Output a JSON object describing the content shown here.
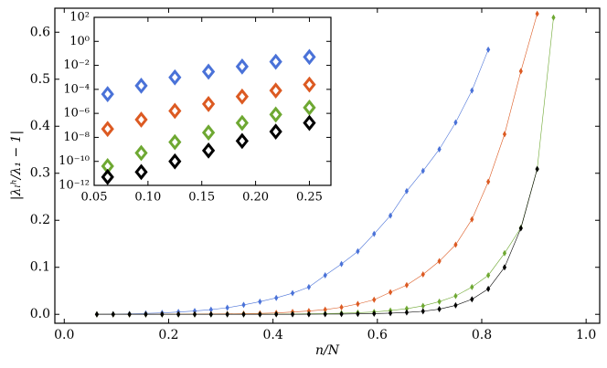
{
  "chart_data": [
    {
      "type": "line",
      "x_label": "n/N",
      "y_label": "|λₗʰ/λ₁ − 1|",
      "xlim": [
        -0.018,
        1.026
      ],
      "ylim": [
        -0.019,
        0.651
      ],
      "xticks": [
        {
          "value": 0,
          "label": "0.0"
        },
        0.2,
        0.4,
        0.6,
        0.8,
        {
          "value": 1,
          "label": "1.0"
        }
      ],
      "yticks": [
        {
          "value": 0,
          "label": "0.0"
        },
        0.1,
        0.2,
        0.3,
        0.4,
        0.5,
        0.6
      ],
      "series": [
        {
          "color": "#4a72d8",
          "x": [
            0.0625,
            0.09375,
            0.125,
            0.15625,
            0.1875,
            0.21875,
            0.25,
            0.28125,
            0.3125,
            0.34375,
            0.375,
            0.40625,
            0.4375,
            0.46875,
            0.5,
            0.53125,
            0.5625,
            0.59375,
            0.625,
            0.65625,
            0.6875,
            0.71875,
            0.75,
            0.78125,
            0.8125
          ],
          "values": [
            0.0002,
            0.0005,
            0.001,
            0.002,
            0.003,
            0.005,
            0.007,
            0.01,
            0.014,
            0.02,
            0.027,
            0.035,
            0.045,
            0.058,
            0.083,
            0.107,
            0.134,
            0.171,
            0.21,
            0.262,
            0.305,
            0.351,
            0.408,
            0.476,
            0.563
          ]
        },
        {
          "color": "#dc5a22",
          "x": [
            0.0625,
            0.09375,
            0.125,
            0.15625,
            0.1875,
            0.21875,
            0.25,
            0.28125,
            0.3125,
            0.34375,
            0.375,
            0.40625,
            0.4375,
            0.46875,
            0.5,
            0.53125,
            0.5625,
            0.59375,
            0.625,
            0.65625,
            0.6875,
            0.71875,
            0.75,
            0.78125,
            0.8125,
            0.84375,
            0.875,
            0.90625
          ],
          "values": [
            1e-05,
            2e-05,
            5e-05,
            0.0001,
            0.0002,
            0.0003,
            0.0005,
            0.0007,
            0.001,
            0.0015,
            0.002,
            0.003,
            0.005,
            0.007,
            0.01,
            0.015,
            0.022,
            0.031,
            0.047,
            0.062,
            0.085,
            0.113,
            0.148,
            0.202,
            0.282,
            0.383,
            0.517,
            0.639
          ]
        },
        {
          "color": "#6ea832",
          "x": [
            0.0625,
            0.09375,
            0.125,
            0.15625,
            0.1875,
            0.21875,
            0.25,
            0.28125,
            0.3125,
            0.34375,
            0.375,
            0.40625,
            0.4375,
            0.46875,
            0.5,
            0.53125,
            0.5625,
            0.59375,
            0.625,
            0.65625,
            0.6875,
            0.71875,
            0.75,
            0.78125,
            0.8125,
            0.84375,
            0.875,
            0.90625,
            0.9375
          ],
          "values": [
            2e-07,
            5e-07,
            1e-06,
            2e-06,
            5e-06,
            1e-05,
            2e-05,
            3e-05,
            6e-05,
            0.0001,
            0.0002,
            0.0004,
            0.0006,
            0.001,
            0.0015,
            0.0023,
            0.0035,
            0.005,
            0.008,
            0.012,
            0.018,
            0.027,
            0.039,
            0.058,
            0.083,
            0.13,
            0.184,
            0.309,
            0.631
          ]
        },
        {
          "color": "#000000",
          "x": [
            0.0625,
            0.09375,
            0.125,
            0.15625,
            0.1875,
            0.21875,
            0.25,
            0.28125,
            0.3125,
            0.34375,
            0.375,
            0.40625,
            0.4375,
            0.46875,
            0.5,
            0.53125,
            0.5625,
            0.59375,
            0.625,
            0.65625,
            0.6875,
            0.71875,
            0.75,
            0.78125,
            0.8125,
            0.84375,
            0.875,
            0.90625
          ],
          "values": [
            2e-08,
            5e-08,
            1e-07,
            2e-07,
            5e-07,
            1e-06,
            2e-06,
            5e-06,
            1e-05,
            2e-05,
            3e-05,
            6e-05,
            0.0001,
            0.0002,
            0.0004,
            0.0006,
            0.001,
            0.0015,
            0.0025,
            0.004,
            0.0065,
            0.011,
            0.019,
            0.032,
            0.054,
            0.1,
            0.183,
            0.309
          ]
        }
      ]
    },
    {
      "type": "scatter",
      "log_y": true,
      "xlim": [
        0.05,
        0.27
      ],
      "ylim": [
        1e-12,
        100
      ],
      "xticks": [
        0.05,
        {
          "value": 0.1,
          "label": "0.10"
        },
        0.15,
        {
          "value": 0.2,
          "label": "0.20"
        },
        0.25
      ],
      "yticks": [
        {
          "value": 1e-12,
          "label": "10⁻¹²"
        },
        {
          "value": 1e-10,
          "label": "10⁻¹⁰"
        },
        {
          "value": 1e-08,
          "label": "10⁻⁸"
        },
        {
          "value": 1e-06,
          "label": "10⁻⁶"
        },
        {
          "value": 0.0001,
          "label": "10⁻⁴"
        },
        {
          "value": 0.01,
          "label": "10⁻²"
        },
        {
          "value": 1,
          "label": "10⁰"
        },
        {
          "value": 100,
          "label": "10²"
        }
      ],
      "series": [
        {
          "color": "#4a72d8",
          "x": [
            0.0625,
            0.09375,
            0.125,
            0.15625,
            0.1875,
            0.21875,
            0.25
          ],
          "values": [
            4e-05,
            0.0002,
            0.001,
            0.003,
            0.008,
            0.02,
            0.05
          ]
        },
        {
          "color": "#dc5a22",
          "x": [
            0.0625,
            0.09375,
            0.125,
            0.15625,
            0.1875,
            0.21875,
            0.25
          ],
          "values": [
            5e-08,
            3e-07,
            1.6e-06,
            6e-06,
            2.5e-05,
            8e-05,
            0.00025
          ]
        },
        {
          "color": "#6ea832",
          "x": [
            0.0625,
            0.09375,
            0.125,
            0.15625,
            0.1875,
            0.21875,
            0.25
          ],
          "values": [
            4e-11,
            5e-10,
            4e-09,
            2.5e-08,
            1.6e-07,
            8e-07,
            3e-06
          ]
        },
        {
          "color": "#000000",
          "x": [
            0.0625,
            0.09375,
            0.125,
            0.15625,
            0.1875,
            0.21875,
            0.25
          ],
          "values": [
            5e-12,
            1.3e-11,
            1e-10,
            8e-10,
            5e-09,
            3e-08,
            1.6e-07
          ]
        }
      ]
    }
  ]
}
